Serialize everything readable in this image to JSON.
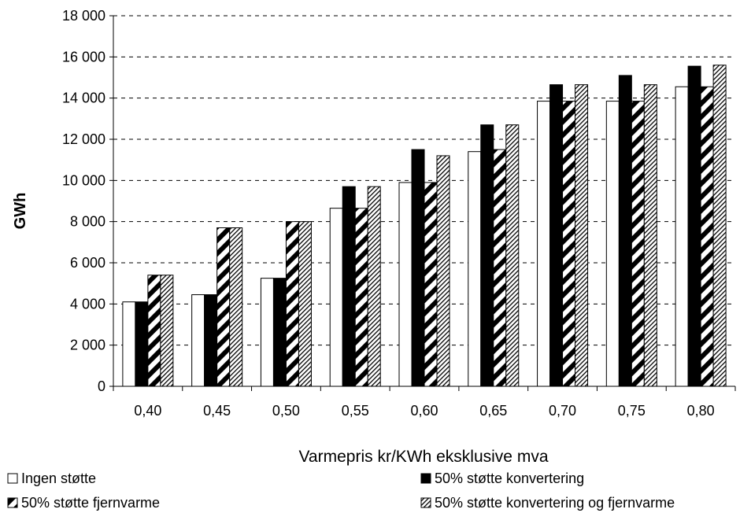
{
  "chart_data": {
    "type": "bar",
    "ylabel": "GWh",
    "xlabel": "Varmepris kr/KWh eksklusive mva",
    "categories": [
      "0,40",
      "0,45",
      "0,50",
      "0,55",
      "0,60",
      "0,65",
      "0,70",
      "0,75",
      "0,80"
    ],
    "ylim": [
      0,
      18000
    ],
    "yticks": [
      0,
      2000,
      4000,
      6000,
      8000,
      10000,
      12000,
      14000,
      16000,
      18000
    ],
    "ytick_labels": [
      "0",
      "2 000",
      "4 000",
      "6 000",
      "8 000",
      "10 000",
      "12 000",
      "14 000",
      "16 000",
      "18 000"
    ],
    "grid": "horizontal dashed",
    "legend_position": "bottom",
    "series": [
      {
        "name": "Ingen støtte",
        "fill": "white",
        "values": [
          4100,
          4450,
          5250,
          8650,
          9900,
          11400,
          13850,
          13850,
          14550
        ]
      },
      {
        "name": "50% støtte konvertering",
        "fill": "black",
        "values": [
          4100,
          4450,
          5250,
          9700,
          11500,
          12700,
          14650,
          15100,
          15550
        ]
      },
      {
        "name": "50% støtte fjernvarme",
        "fill": "diagonal-hatch",
        "values": [
          5400,
          7700,
          8000,
          8650,
          9900,
          11500,
          13850,
          13850,
          14550
        ]
      },
      {
        "name": "50% støtte konvertering og fjernvarme",
        "fill": "fine-hatch",
        "values": [
          5400,
          7700,
          8000,
          9700,
          11200,
          12700,
          14650,
          14650,
          15600
        ]
      }
    ]
  }
}
